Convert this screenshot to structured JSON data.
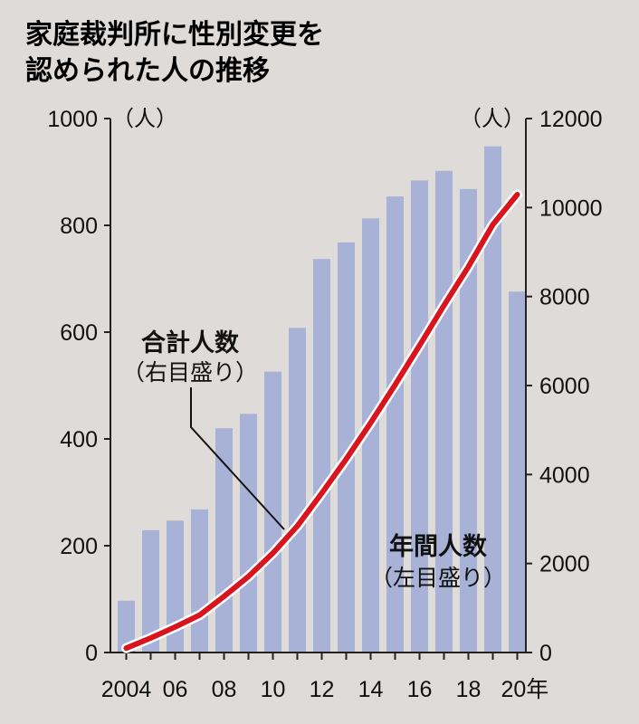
{
  "chart_data": {
    "type": "bar+line",
    "title_lines": [
      "家庭裁判所に性別変更を",
      "認められた人の推移"
    ],
    "x": [
      2004,
      2005,
      2006,
      2007,
      2008,
      2009,
      2010,
      2011,
      2012,
      2013,
      2014,
      2015,
      2016,
      2017,
      2018,
      2019,
      2020
    ],
    "x_tick_labels": [
      "2004",
      "06",
      "08",
      "10",
      "12",
      "14",
      "16",
      "18",
      "20年"
    ],
    "x_tick_years": [
      2004,
      2006,
      2008,
      2010,
      2012,
      2014,
      2016,
      2018,
      2020
    ],
    "y_left": {
      "unit": "（人）",
      "ylim": [
        0,
        1000
      ],
      "ticks": [
        0,
        200,
        400,
        600,
        800,
        1000
      ]
    },
    "y_right": {
      "unit": "（人）",
      "ylim": [
        0,
        12000
      ],
      "ticks": [
        0,
        2000,
        4000,
        6000,
        8000,
        10000,
        12000
      ]
    },
    "bars": {
      "label": "年間人数",
      "axis_note": "（左目盛り）",
      "color": "#a8b2d6",
      "values": [
        97,
        229,
        247,
        268,
        420,
        447,
        526,
        608,
        737,
        768,
        813,
        854,
        884,
        902,
        868,
        948,
        676
      ]
    },
    "line": {
      "label": "合計人数",
      "axis_note": "（右目盛り）",
      "color": "#d9141c",
      "values": [
        97,
        326,
        573,
        841,
        1261,
        1708,
        2234,
        2842,
        3579,
        4347,
        5160,
        6014,
        6898,
        7800,
        8668,
        9616,
        10292
      ]
    }
  }
}
